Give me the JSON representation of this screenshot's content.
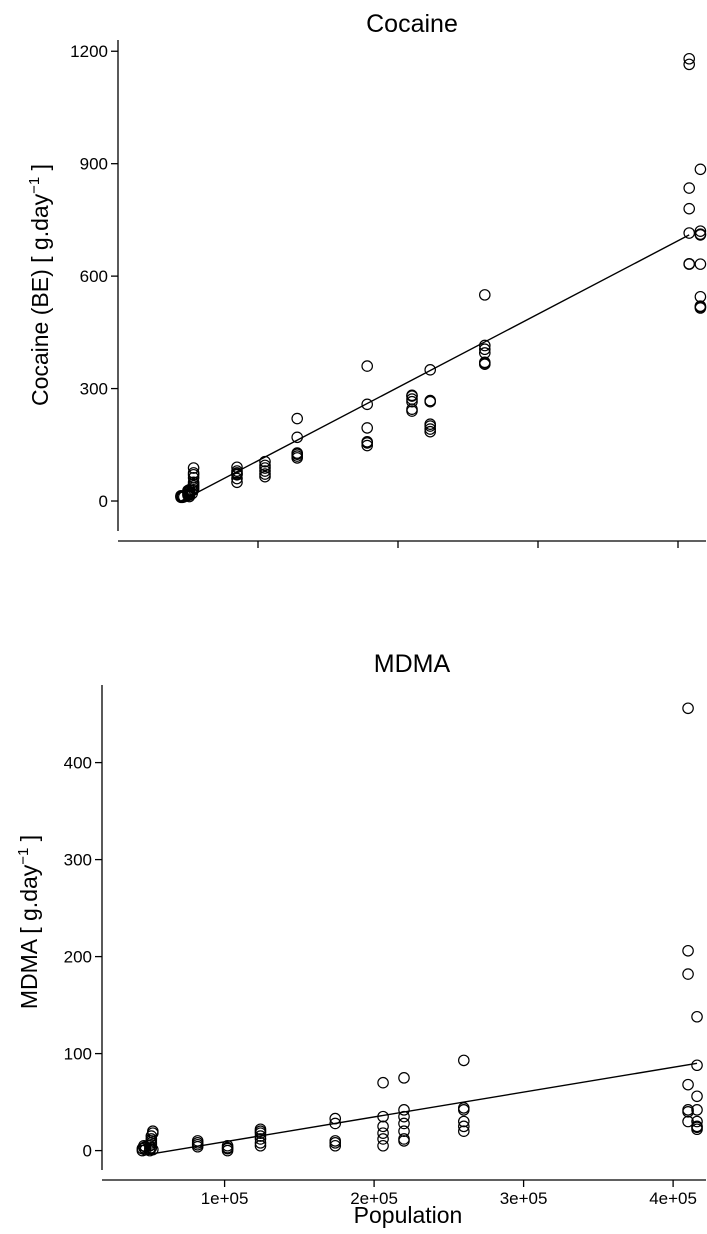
{
  "chart_data": [
    {
      "type": "scatter",
      "title": "Cocaine",
      "ylabel_main": "Cocaine (BE) [ g.day",
      "ylabel_sup": "−1",
      "ylabel_end": " ]",
      "xlim": [
        0,
        420000
      ],
      "ylim": [
        -80,
        1230
      ],
      "yticks": [
        0,
        300,
        600,
        900,
        1200
      ],
      "yticklabels": [
        "0",
        "300",
        "600",
        "900",
        "1200"
      ],
      "xticks": [
        100000,
        200000,
        300000,
        400000
      ],
      "show_xticklabels": false,
      "fit_line": {
        "x": [
          45000,
          408000
        ],
        "y": [
          0,
          710
        ]
      },
      "points": {
        "x": [
          45000,
          45000,
          45000,
          46000,
          46000,
          47000,
          50000,
          50000,
          50000,
          50000,
          50000,
          51000,
          51000,
          51000,
          51000,
          51000,
          53000,
          53000,
          54000,
          54000,
          54000,
          54000,
          54000,
          54000,
          54000,
          54000,
          54000,
          85000,
          85000,
          85000,
          85000,
          85000,
          85000,
          85000,
          105000,
          105000,
          105000,
          105000,
          105000,
          105000,
          128000,
          128000,
          128000,
          128000,
          128000,
          128000,
          178000,
          178000,
          178000,
          178000,
          178000,
          178000,
          210000,
          210000,
          210000,
          210000,
          210000,
          210000,
          223000,
          223000,
          223000,
          223000,
          223000,
          223000,
          223000,
          262000,
          262000,
          262000,
          262000,
          262000,
          262000,
          262000,
          408000,
          408000,
          408000,
          408000,
          408000,
          408000,
          408000,
          416000,
          416000,
          416000,
          416000,
          416000,
          416000,
          416000,
          416000,
          416000
        ],
        "y": [
          10,
          12,
          14,
          10,
          13,
          11,
          15,
          18,
          22,
          25,
          28,
          20,
          12,
          16,
          24,
          30,
          20,
          28,
          35,
          40,
          50,
          62,
          70,
          75,
          88,
          30,
          45,
          50,
          60,
          70,
          72,
          75,
          80,
          90,
          65,
          72,
          80,
          88,
          95,
          105,
          115,
          120,
          125,
          128,
          170,
          220,
          148,
          158,
          195,
          258,
          360,
          155,
          240,
          245,
          265,
          272,
          280,
          282,
          185,
          192,
          200,
          205,
          265,
          268,
          350,
          365,
          370,
          395,
          405,
          415,
          550,
          368,
          1180,
          1165,
          835,
          780,
          715,
          632,
          633,
          885,
          720,
          710,
          632,
          545,
          520,
          515,
          712,
          518
        ]
      }
    },
    {
      "type": "scatter",
      "title": "MDMA",
      "xlabel": "Population",
      "ylabel_main": "MDMA [ g.day",
      "ylabel_sup": "−1",
      "ylabel_end": " ]",
      "xlim": [
        18000,
        422000
      ],
      "ylim": [
        -20,
        480
      ],
      "yticks": [
        0,
        100,
        200,
        300,
        400
      ],
      "yticklabels": [
        "0",
        "100",
        "200",
        "300",
        "400"
      ],
      "xticks": [
        100000,
        200000,
        300000,
        400000
      ],
      "xticklabels": [
        "1e+05",
        "2e+05",
        "3e+05",
        "4e+05"
      ],
      "fit_line": {
        "x": [
          45000,
          416000
        ],
        "y": [
          -5,
          90
        ]
      },
      "points": {
        "x": [
          45000,
          45000,
          46000,
          46000,
          47000,
          47000,
          50000,
          50000,
          50000,
          51000,
          51000,
          51000,
          51000,
          51000,
          51000,
          52000,
          52000,
          52000,
          82000,
          82000,
          82000,
          82000,
          102000,
          102000,
          102000,
          102000,
          124000,
          124000,
          124000,
          124000,
          124000,
          124000,
          124000,
          174000,
          174000,
          174000,
          174000,
          174000,
          206000,
          206000,
          206000,
          206000,
          206000,
          206000,
          220000,
          220000,
          220000,
          220000,
          220000,
          220000,
          220000,
          260000,
          260000,
          260000,
          260000,
          260000,
          260000,
          410000,
          410000,
          410000,
          410000,
          410000,
          410000,
          410000,
          416000,
          416000,
          416000,
          416000,
          416000,
          416000,
          416000,
          416000
        ],
        "y": [
          0,
          2,
          3,
          5,
          1,
          4,
          0,
          2,
          5,
          8,
          10,
          12,
          15,
          3,
          6,
          18,
          20,
          1,
          4,
          6,
          8,
          10,
          0,
          2,
          3,
          5,
          5,
          8,
          12,
          15,
          18,
          20,
          22,
          5,
          8,
          10,
          28,
          33,
          5,
          12,
          18,
          25,
          35,
          70,
          10,
          12,
          20,
          28,
          35,
          42,
          75,
          20,
          25,
          30,
          42,
          44,
          93,
          456,
          206,
          182,
          68,
          42,
          40,
          30,
          138,
          88,
          56,
          42,
          30,
          25,
          22,
          24
        ]
      }
    }
  ]
}
